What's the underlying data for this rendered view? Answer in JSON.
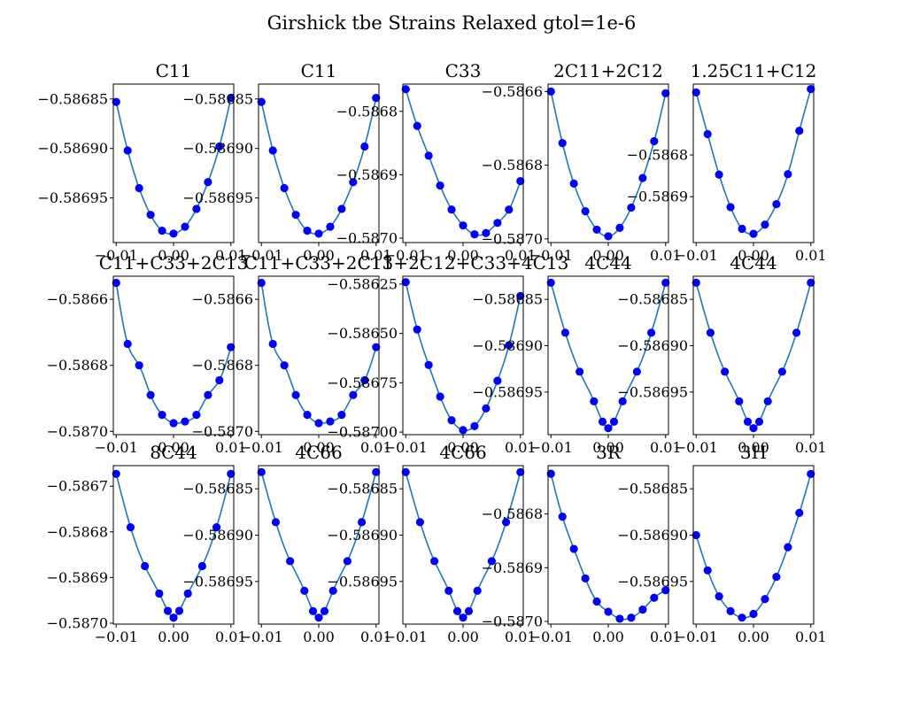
{
  "suptitle": "Girshick tbe Strains Relaxed gtol=1e-6",
  "colors": {
    "line": "#1f77b4",
    "marker": "#0000ff",
    "axes": "#000000"
  },
  "chart_data": [
    {
      "type": "line",
      "title": "C11",
      "xlim": [
        -0.0105,
        0.0105
      ],
      "ylim": [
        -0.586995,
        -0.586835
      ],
      "xticks": [
        -0.01,
        0.0,
        0.01
      ],
      "xticklabels": [
        "−0.01",
        "0.00",
        "0.01"
      ],
      "yticks": [
        -0.58695,
        -0.5869,
        -0.58685
      ],
      "yticklabels": [
        "−0.58695",
        "−0.58690",
        "−0.58685"
      ],
      "x": [
        -0.01,
        -0.008,
        -0.006,
        -0.004,
        -0.002,
        0.0,
        0.002,
        0.004,
        0.006,
        0.008,
        0.01
      ],
      "y": [
        -0.586853,
        -0.586902,
        -0.58694,
        -0.586967,
        -0.586983,
        -0.586986,
        -0.586979,
        -0.586961,
        -0.586934,
        -0.586898,
        -0.586849
      ]
    },
    {
      "type": "line",
      "title": "C11",
      "xlim": [
        -0.0105,
        0.0105
      ],
      "ylim": [
        -0.586995,
        -0.586835
      ],
      "xticks": [
        -0.01,
        0.0,
        0.01
      ],
      "xticklabels": [
        "−0.01",
        "0.00",
        "0.01"
      ],
      "yticks": [
        -0.58695,
        -0.5869,
        -0.58685
      ],
      "yticklabels": [
        "−0.58695",
        "−0.58690",
        "−0.58685"
      ],
      "x": [
        -0.01,
        -0.008,
        -0.006,
        -0.004,
        -0.002,
        0.0,
        0.002,
        0.004,
        0.006,
        0.008,
        0.01
      ],
      "y": [
        -0.586853,
        -0.586902,
        -0.58694,
        -0.586967,
        -0.586983,
        -0.586986,
        -0.586979,
        -0.586961,
        -0.586934,
        -0.586898,
        -0.586849
      ]
    },
    {
      "type": "line",
      "title": "C33",
      "xlim": [
        -0.0105,
        0.0105
      ],
      "ylim": [
        -0.587007,
        -0.586757
      ],
      "xticks": [
        -0.01,
        0.0,
        0.01
      ],
      "xticklabels": [
        "−0.01",
        "0.00",
        "0.01"
      ],
      "yticks": [
        -0.587,
        -0.5869,
        -0.5868
      ],
      "yticklabels": [
        "−0.5870",
        "−0.5869",
        "−0.5868"
      ],
      "x": [
        -0.01,
        -0.008,
        -0.006,
        -0.004,
        -0.002,
        0.0,
        0.002,
        0.004,
        0.006,
        0.008,
        0.01
      ],
      "y": [
        -0.586765,
        -0.586823,
        -0.58687,
        -0.586917,
        -0.586955,
        -0.58698,
        -0.586994,
        -0.586992,
        -0.586976,
        -0.586955,
        -0.58691
      ]
    },
    {
      "type": "line",
      "title": "2C11+2C12",
      "xlim": [
        -0.0105,
        0.0105
      ],
      "ylim": [
        -0.58701,
        -0.58658
      ],
      "xticks": [
        -0.01,
        0.0,
        0.01
      ],
      "xticklabels": [
        "−0.01",
        "0.00",
        "0.01"
      ],
      "yticks": [
        -0.587,
        -0.5868,
        -0.5866
      ],
      "yticklabels": [
        "−0.5870",
        "−0.5868",
        "−0.5866"
      ],
      "x": [
        -0.01,
        -0.008,
        -0.006,
        -0.004,
        -0.002,
        0.0,
        0.002,
        0.004,
        0.006,
        0.008,
        0.01
      ],
      "y": [
        -0.5866,
        -0.58674,
        -0.58685,
        -0.586925,
        -0.586975,
        -0.586993,
        -0.58697,
        -0.586915,
        -0.586835,
        -0.586735,
        -0.586605
      ]
    },
    {
      "type": "line",
      "title": "1.25C11+C12",
      "xlim": [
        -0.0105,
        0.0105
      ],
      "ylim": [
        -0.58701,
        -0.58663
      ],
      "xticks": [
        -0.01,
        0.0,
        0.01
      ],
      "xticklabels": [
        "−0.01",
        "0.00",
        "0.01"
      ],
      "yticks": [
        -0.5869,
        -0.5868
      ],
      "yticklabels": [
        "−0.5869",
        "−0.5868"
      ],
      "x": [
        -0.01,
        -0.008,
        -0.006,
        -0.004,
        -0.002,
        0.0,
        0.002,
        0.004,
        0.006,
        0.008,
        0.01
      ],
      "y": [
        -0.58665,
        -0.58675,
        -0.586847,
        -0.586925,
        -0.586977,
        -0.586989,
        -0.586967,
        -0.586918,
        -0.586846,
        -0.586742,
        -0.586642
      ]
    },
    {
      "type": "line",
      "title": "C11+C33+2C13",
      "xlim": [
        -0.0105,
        0.0105
      ],
      "ylim": [
        -0.58701,
        -0.58653
      ],
      "xticks": [
        -0.01,
        0.0,
        0.01
      ],
      "xticklabels": [
        "−0.01",
        "0.00",
        "0.01"
      ],
      "yticks": [
        -0.587,
        -0.5868,
        -0.5866
      ],
      "yticklabels": [
        "−0.5870",
        "−0.5868",
        "−0.5866"
      ],
      "x": [
        -0.01,
        -0.008,
        -0.006,
        -0.004,
        -0.002,
        0.0,
        0.002,
        0.004,
        0.006,
        0.008,
        0.01
      ],
      "y": [
        -0.58655,
        -0.586735,
        -0.5868,
        -0.58689,
        -0.58695,
        -0.586975,
        -0.58697,
        -0.58695,
        -0.58689,
        -0.586845,
        -0.586745
      ]
    },
    {
      "type": "line",
      "title": "C11+C33+2C13",
      "xlim": [
        -0.0105,
        0.0105
      ],
      "ylim": [
        -0.58701,
        -0.58653
      ],
      "xticks": [
        -0.01,
        0.0,
        0.01
      ],
      "xticklabels": [
        "−0.01",
        "0.00",
        "0.01"
      ],
      "yticks": [
        -0.587,
        -0.5868,
        -0.5866
      ],
      "yticklabels": [
        "−0.5870",
        "−0.5868",
        "−0.5866"
      ],
      "x": [
        -0.01,
        -0.008,
        -0.006,
        -0.004,
        -0.002,
        0.0,
        0.002,
        0.004,
        0.006,
        0.008,
        0.01
      ],
      "y": [
        -0.58655,
        -0.586735,
        -0.5868,
        -0.58689,
        -0.58695,
        -0.586975,
        -0.58697,
        -0.58695,
        -0.58689,
        -0.586845,
        -0.586745
      ]
    },
    {
      "type": "line",
      "title": "C11+2C12+C33+4C13",
      "xlim": [
        -0.0105,
        0.0105
      ],
      "ylim": [
        -0.587013,
        -0.58621
      ],
      "xticks": [
        -0.01,
        0.0,
        0.01
      ],
      "xticklabels": [
        "−0.01",
        "0.00",
        "0.01"
      ],
      "yticks": [
        -0.587,
        -0.58675,
        -0.5865,
        -0.58625
      ],
      "yticklabels": [
        "−0.58700",
        "−0.58675",
        "−0.58650",
        "−0.58625"
      ],
      "x": [
        -0.01,
        -0.008,
        -0.006,
        -0.004,
        -0.002,
        0.0,
        0.002,
        0.004,
        0.006,
        0.008,
        0.01
      ],
      "y": [
        -0.58624,
        -0.58648,
        -0.58666,
        -0.58682,
        -0.58694,
        -0.58699,
        -0.58697,
        -0.58688,
        -0.58674,
        -0.58656,
        -0.58631
      ]
    },
    {
      "type": "line",
      "title": "4C44",
      "xlim": [
        -0.0105,
        0.0105
      ],
      "ylim": [
        -0.586996,
        -0.586825
      ],
      "xticks": [
        -0.01,
        0.0,
        0.01
      ],
      "xticklabels": [
        "−0.01",
        "0.00",
        "0.01"
      ],
      "yticks": [
        -0.58695,
        -0.5869,
        -0.58685
      ],
      "yticklabels": [
        "−0.58695",
        "−0.58690",
        "−0.58685"
      ],
      "x": [
        -0.01,
        -0.0075,
        -0.005,
        -0.0025,
        -0.001,
        0.0,
        0.001,
        0.0025,
        0.005,
        0.0075,
        0.01
      ],
      "y": [
        -0.586832,
        -0.586886,
        -0.586928,
        -0.58696,
        -0.586982,
        -0.586989,
        -0.586982,
        -0.58696,
        -0.586928,
        -0.586886,
        -0.586832
      ]
    },
    {
      "type": "line",
      "title": "4C44",
      "xlim": [
        -0.0105,
        0.0105
      ],
      "ylim": [
        -0.586996,
        -0.586825
      ],
      "xticks": [
        -0.01,
        0.0,
        0.01
      ],
      "xticklabels": [
        "−0.01",
        "0.00",
        "0.01"
      ],
      "yticks": [
        -0.58695,
        -0.5869,
        -0.58685
      ],
      "yticklabels": [
        "−0.58695",
        "−0.58690",
        "−0.58685"
      ],
      "x": [
        -0.01,
        -0.0075,
        -0.005,
        -0.0025,
        -0.001,
        0.0,
        0.001,
        0.0025,
        0.005,
        0.0075,
        0.01
      ],
      "y": [
        -0.586832,
        -0.586886,
        -0.586928,
        -0.58696,
        -0.586982,
        -0.586989,
        -0.586982,
        -0.58696,
        -0.586928,
        -0.586886,
        -0.586832
      ]
    },
    {
      "type": "line",
      "title": "8C44",
      "xlim": [
        -0.0105,
        0.0105
      ],
      "ylim": [
        -0.587002,
        -0.586655
      ],
      "xticks": [
        -0.01,
        0.0,
        0.01
      ],
      "xticklabels": [
        "−0.01",
        "0.00",
        "0.01"
      ],
      "yticks": [
        -0.587,
        -0.5869,
        -0.5868,
        -0.5867
      ],
      "yticklabels": [
        "−0.5870",
        "−0.5869",
        "−0.5868",
        "−0.5867"
      ],
      "x": [
        -0.01,
        -0.0075,
        -0.005,
        -0.0025,
        -0.001,
        0.0,
        0.001,
        0.0025,
        0.005,
        0.0075,
        0.01
      ],
      "y": [
        -0.586673,
        -0.58679,
        -0.586875,
        -0.586935,
        -0.586973,
        -0.586988,
        -0.586973,
        -0.586935,
        -0.586875,
        -0.58679,
        -0.586673
      ]
    },
    {
      "type": "line",
      "title": "4C66",
      "xlim": [
        -0.0105,
        0.0105
      ],
      "ylim": [
        -0.586996,
        -0.586825
      ],
      "xticks": [
        -0.01,
        0.0,
        0.01
      ],
      "xticklabels": [
        "−0.01",
        "0.00",
        "0.01"
      ],
      "yticks": [
        -0.58695,
        -0.5869,
        -0.58685
      ],
      "yticklabels": [
        "−0.58695",
        "−0.58690",
        "−0.58685"
      ],
      "x": [
        -0.01,
        -0.0075,
        -0.005,
        -0.0025,
        -0.001,
        0.0,
        0.001,
        0.0025,
        0.005,
        0.0075,
        0.01
      ],
      "y": [
        -0.586832,
        -0.586886,
        -0.586928,
        -0.58696,
        -0.586982,
        -0.586989,
        -0.586982,
        -0.58696,
        -0.586928,
        -0.586886,
        -0.586832
      ]
    },
    {
      "type": "line",
      "title": "4C66",
      "xlim": [
        -0.0105,
        0.0105
      ],
      "ylim": [
        -0.586996,
        -0.586825
      ],
      "xticks": [
        -0.01,
        0.0,
        0.01
      ],
      "xticklabels": [
        "−0.01",
        "0.00",
        "0.01"
      ],
      "yticks": [
        -0.58695,
        -0.5869,
        -0.58685
      ],
      "yticklabels": [
        "−0.58695",
        "−0.58690",
        "−0.58685"
      ],
      "x": [
        -0.01,
        -0.0075,
        -0.005,
        -0.0025,
        -0.001,
        0.0,
        0.001,
        0.0025,
        0.005,
        0.0075,
        0.01
      ],
      "y": [
        -0.586832,
        -0.586886,
        -0.586928,
        -0.58696,
        -0.586982,
        -0.586989,
        -0.586982,
        -0.58696,
        -0.586928,
        -0.586886,
        -0.586832
      ]
    },
    {
      "type": "line",
      "title": "3R",
      "xlim": [
        -0.0105,
        0.0105
      ],
      "ylim": [
        -0.587005,
        -0.58671
      ],
      "xticks": [
        -0.01,
        0.0,
        0.01
      ],
      "xticklabels": [
        "−0.01",
        "0.00",
        "0.01"
      ],
      "yticks": [
        -0.587,
        -0.5869,
        -0.5868
      ],
      "yticklabels": [
        "−0.5870",
        "−0.5869",
        "−0.5868"
      ],
      "x": [
        -0.01,
        -0.008,
        -0.006,
        -0.004,
        -0.002,
        0.0,
        0.002,
        0.004,
        0.006,
        0.008,
        0.01
      ],
      "y": [
        -0.586725,
        -0.586805,
        -0.586865,
        -0.58692,
        -0.586963,
        -0.586982,
        -0.586995,
        -0.586993,
        -0.586978,
        -0.586956,
        -0.586942
      ]
    },
    {
      "type": "line",
      "title": "3H",
      "xlim": [
        -0.0105,
        0.0105
      ],
      "ylim": [
        -0.586996,
        -0.586825
      ],
      "xticks": [
        -0.01,
        0.0,
        0.01
      ],
      "xticklabels": [
        "−0.01",
        "0.00",
        "0.01"
      ],
      "yticks": [
        -0.58695,
        -0.5869,
        -0.58685
      ],
      "yticklabels": [
        "−0.58695",
        "−0.58690",
        "−0.58685"
      ],
      "x": [
        -0.01,
        -0.008,
        -0.006,
        -0.004,
        -0.002,
        0.0,
        0.002,
        0.004,
        0.006,
        0.008,
        0.01
      ],
      "y": [
        -0.5869,
        -0.586938,
        -0.586966,
        -0.586982,
        -0.586989,
        -0.586985,
        -0.586969,
        -0.586945,
        -0.586913,
        -0.586876,
        -0.586834
      ]
    }
  ]
}
